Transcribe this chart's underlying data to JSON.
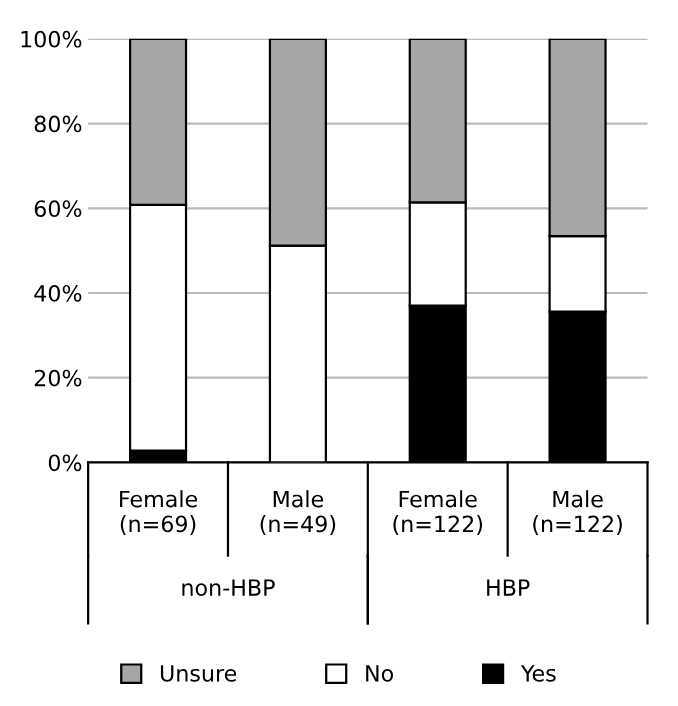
{
  "chart_data": {
    "type": "bar",
    "stacked": true,
    "categories": [
      "Female\n(n=69)",
      "Male\n(n=49)",
      "Female\n(n=122)",
      "Male\n(n=122)"
    ],
    "series": [
      {
        "name": "Yes",
        "color": "#000000",
        "values": [
          2.8,
          0,
          37.0,
          35.6
        ]
      },
      {
        "name": "No",
        "color": "#ffffff",
        "values": [
          58.0,
          51.2,
          24.4,
          17.8
        ]
      },
      {
        "name": "Unsure",
        "color": "#a6a6a6",
        "values": [
          39.2,
          48.8,
          38.6,
          46.6
        ]
      }
    ],
    "annotations": [
      "non-HBP",
      "HBP"
    ],
    "ylim": [
      0,
      100
    ],
    "yticks": [
      {
        "value": 0,
        "label": "0%"
      },
      {
        "value": 20,
        "label": "20%"
      },
      {
        "value": 40,
        "label": "40%"
      },
      {
        "value": 60,
        "label": "60%"
      },
      {
        "value": 80,
        "label": "80%"
      },
      {
        "value": 100,
        "label": "100%"
      }
    ],
    "grid": "y",
    "legend": "bottom"
  }
}
